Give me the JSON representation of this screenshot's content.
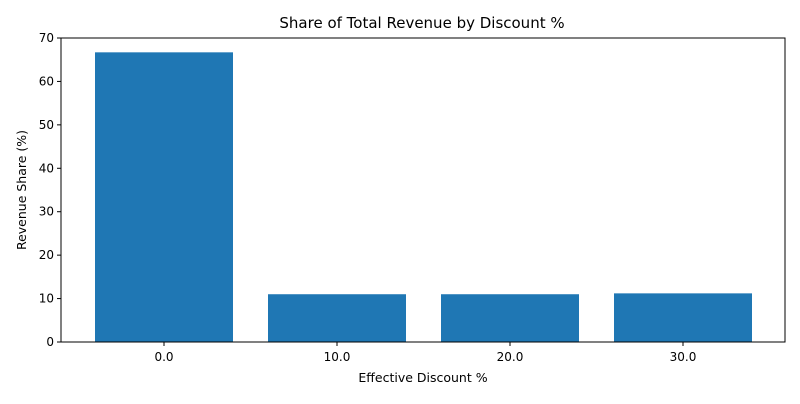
{
  "chart_data": {
    "type": "bar",
    "title": "Share of Total Revenue by Discount %",
    "xlabel": "Effective Discount %",
    "ylabel": "Revenue Share (%)",
    "categories": [
      "0.0",
      "10.0",
      "20.0",
      "30.0"
    ],
    "values": [
      66.7,
      11.0,
      11.0,
      11.2
    ],
    "ylim": [
      0,
      70
    ],
    "yticks": [
      0,
      10,
      20,
      30,
      40,
      50,
      60,
      70
    ],
    "grid": false,
    "legend": "none",
    "bar_color": "#1f77b4"
  }
}
